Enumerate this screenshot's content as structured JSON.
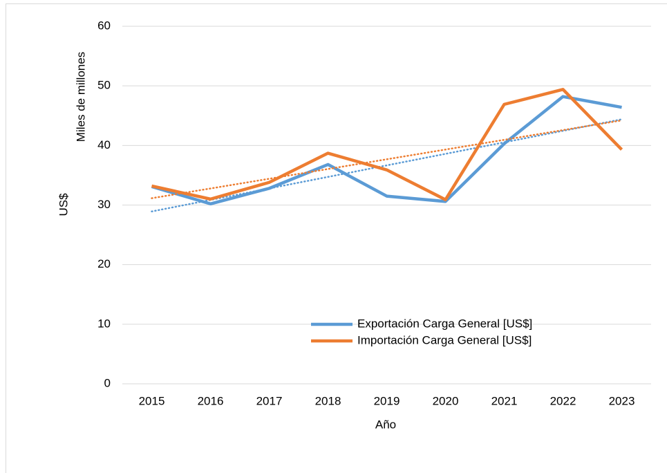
{
  "chart_data": {
    "type": "line",
    "y_label_lines": [
      "Miles de millones",
      "US$"
    ],
    "x_label": "Año",
    "categories": [
      "2015",
      "2016",
      "2017",
      "2018",
      "2019",
      "2020",
      "2021",
      "2022",
      "2023"
    ],
    "series": [
      {
        "name": "Exportación Carga General [US$]",
        "color": "#5b9bd5",
        "values": [
          33.1,
          30.2,
          32.8,
          36.8,
          31.5,
          30.6,
          40.3,
          48.2,
          46.4
        ]
      },
      {
        "name": "Importación Carga General [US$]",
        "color": "#ed7d31",
        "values": [
          33.2,
          31.0,
          33.8,
          38.7,
          35.9,
          30.9,
          46.9,
          49.4,
          39.3
        ]
      }
    ],
    "ylim": [
      0,
      60
    ],
    "yticks": [
      0,
      10,
      20,
      30,
      40,
      50,
      60
    ],
    "grid": true,
    "linear_trendline": true,
    "legend": "bottom-right"
  }
}
